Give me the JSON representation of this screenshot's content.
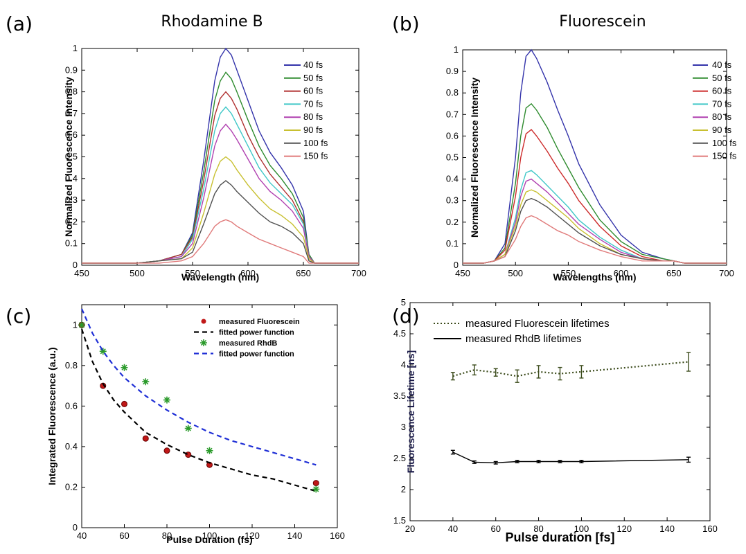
{
  "chart_data": [
    {
      "panel": "(a)",
      "type": "line",
      "title": "Rhodamine B",
      "xlabel": "Wavelength (nm)",
      "ylabel": "Normalized Fluorescence Intensity",
      "xlim": [
        450,
        700
      ],
      "ylim": [
        0,
        1
      ],
      "xticks": [
        "450",
        "500",
        "550",
        "600",
        "650",
        "700"
      ],
      "yticks": [
        "0",
        "0.1",
        "0.2",
        "0.3",
        "0.4",
        "0.5",
        "0.6",
        "0.7",
        "0.8",
        "0.9",
        "1"
      ],
      "legend_position": "top-right",
      "x": [
        450,
        480,
        500,
        520,
        540,
        550,
        560,
        570,
        575,
        580,
        585,
        590,
        600,
        610,
        620,
        630,
        640,
        650,
        655,
        660,
        680,
        700
      ],
      "series": [
        {
          "name": "40 fs",
          "color": "#3333aa",
          "values": [
            0.01,
            0.01,
            0.01,
            0.02,
            0.05,
            0.15,
            0.48,
            0.85,
            0.96,
            1.0,
            0.97,
            0.9,
            0.76,
            0.62,
            0.52,
            0.45,
            0.37,
            0.25,
            0.05,
            0.01,
            0.01,
            0.01
          ]
        },
        {
          "name": "50 fs",
          "color": "#2e8b2e",
          "values": [
            0.01,
            0.01,
            0.01,
            0.02,
            0.05,
            0.14,
            0.43,
            0.76,
            0.85,
            0.89,
            0.86,
            0.8,
            0.67,
            0.55,
            0.46,
            0.4,
            0.33,
            0.22,
            0.05,
            0.01,
            0.01,
            0.01
          ]
        },
        {
          "name": "60 fs",
          "color": "#b03030",
          "values": [
            0.01,
            0.01,
            0.01,
            0.02,
            0.05,
            0.13,
            0.39,
            0.69,
            0.77,
            0.8,
            0.77,
            0.72,
            0.6,
            0.5,
            0.42,
            0.36,
            0.3,
            0.2,
            0.04,
            0.01,
            0.01,
            0.01
          ]
        },
        {
          "name": "70 fs",
          "color": "#40c8c8",
          "values": [
            0.01,
            0.01,
            0.01,
            0.02,
            0.04,
            0.12,
            0.35,
            0.62,
            0.7,
            0.73,
            0.7,
            0.65,
            0.55,
            0.45,
            0.38,
            0.33,
            0.28,
            0.19,
            0.04,
            0.01,
            0.01,
            0.01
          ]
        },
        {
          "name": "80 fs",
          "color": "#b040b0",
          "values": [
            0.01,
            0.01,
            0.01,
            0.02,
            0.04,
            0.1,
            0.31,
            0.55,
            0.62,
            0.65,
            0.62,
            0.58,
            0.49,
            0.4,
            0.34,
            0.3,
            0.25,
            0.17,
            0.04,
            0.01,
            0.01,
            0.01
          ]
        },
        {
          "name": "90 fs",
          "color": "#c8c030",
          "values": [
            0.01,
            0.01,
            0.01,
            0.02,
            0.03,
            0.08,
            0.24,
            0.42,
            0.48,
            0.5,
            0.48,
            0.44,
            0.37,
            0.31,
            0.26,
            0.23,
            0.19,
            0.13,
            0.03,
            0.01,
            0.01,
            0.01
          ]
        },
        {
          "name": "100 fs",
          "color": "#505050",
          "values": [
            0.01,
            0.01,
            0.01,
            0.02,
            0.03,
            0.06,
            0.19,
            0.33,
            0.37,
            0.39,
            0.37,
            0.34,
            0.29,
            0.24,
            0.2,
            0.18,
            0.15,
            0.1,
            0.02,
            0.01,
            0.01,
            0.01
          ]
        },
        {
          "name": "150 fs",
          "color": "#e07a7a",
          "values": [
            0.01,
            0.01,
            0.01,
            0.01,
            0.02,
            0.04,
            0.1,
            0.18,
            0.2,
            0.21,
            0.2,
            0.18,
            0.15,
            0.12,
            0.1,
            0.08,
            0.06,
            0.04,
            0.01,
            0.01,
            0.01,
            0.01
          ]
        }
      ]
    },
    {
      "panel": "(b)",
      "type": "line",
      "title": "Fluorescein",
      "xlabel": "Wavelengths (nm)",
      "ylabel": "Normalized Fluorescence Intensity",
      "xlim": [
        450,
        700
      ],
      "ylim": [
        0,
        1
      ],
      "xticks": [
        "450",
        "500",
        "550",
        "600",
        "650",
        "700"
      ],
      "yticks": [
        "0",
        "0.1",
        "0.2",
        "0.3",
        "0.4",
        "0.5",
        "0.6",
        "0.7",
        "0.8",
        "0.9",
        "1"
      ],
      "legend_position": "top-right",
      "x": [
        450,
        470,
        480,
        490,
        500,
        505,
        510,
        515,
        520,
        530,
        540,
        550,
        560,
        580,
        600,
        620,
        640,
        650,
        660,
        680,
        700
      ],
      "series": [
        {
          "name": "40 fs",
          "color": "#3333aa",
          "values": [
            0.01,
            0.01,
            0.02,
            0.1,
            0.5,
            0.8,
            0.97,
            1.0,
            0.96,
            0.85,
            0.72,
            0.6,
            0.47,
            0.28,
            0.14,
            0.06,
            0.03,
            0.02,
            0.01,
            0.01,
            0.01
          ]
        },
        {
          "name": "50 fs",
          "color": "#2e8b2e",
          "values": [
            0.01,
            0.01,
            0.02,
            0.08,
            0.38,
            0.6,
            0.73,
            0.75,
            0.72,
            0.64,
            0.54,
            0.45,
            0.36,
            0.21,
            0.11,
            0.05,
            0.03,
            0.02,
            0.01,
            0.01,
            0.01
          ]
        },
        {
          "name": "60 fs",
          "color": "#cc2a2a",
          "values": [
            0.01,
            0.01,
            0.02,
            0.07,
            0.32,
            0.5,
            0.61,
            0.63,
            0.6,
            0.53,
            0.45,
            0.38,
            0.3,
            0.18,
            0.09,
            0.04,
            0.02,
            0.02,
            0.01,
            0.01,
            0.01
          ]
        },
        {
          "name": "70 fs",
          "color": "#40c8c8",
          "values": [
            0.01,
            0.01,
            0.02,
            0.05,
            0.22,
            0.35,
            0.43,
            0.44,
            0.42,
            0.37,
            0.32,
            0.27,
            0.21,
            0.13,
            0.07,
            0.03,
            0.02,
            0.02,
            0.01,
            0.01,
            0.01
          ]
        },
        {
          "name": "80 fs",
          "color": "#b040b0",
          "values": [
            0.01,
            0.01,
            0.02,
            0.05,
            0.2,
            0.32,
            0.39,
            0.4,
            0.38,
            0.34,
            0.29,
            0.24,
            0.19,
            0.12,
            0.06,
            0.03,
            0.02,
            0.02,
            0.01,
            0.01,
            0.01
          ]
        },
        {
          "name": "90 fs",
          "color": "#c8c030",
          "values": [
            0.01,
            0.01,
            0.02,
            0.05,
            0.18,
            0.28,
            0.34,
            0.35,
            0.34,
            0.3,
            0.26,
            0.22,
            0.17,
            0.1,
            0.05,
            0.03,
            0.02,
            0.02,
            0.01,
            0.01,
            0.01
          ]
        },
        {
          "name": "100 fs",
          "color": "#505050",
          "values": [
            0.01,
            0.01,
            0.02,
            0.04,
            0.16,
            0.25,
            0.3,
            0.31,
            0.3,
            0.27,
            0.23,
            0.19,
            0.15,
            0.09,
            0.05,
            0.03,
            0.02,
            0.02,
            0.01,
            0.01,
            0.01
          ]
        },
        {
          "name": "150 fs",
          "color": "#e07a7a",
          "values": [
            0.01,
            0.01,
            0.02,
            0.04,
            0.12,
            0.18,
            0.22,
            0.23,
            0.22,
            0.19,
            0.16,
            0.14,
            0.11,
            0.07,
            0.04,
            0.02,
            0.02,
            0.02,
            0.01,
            0.01,
            0.01
          ]
        }
      ]
    },
    {
      "panel": "(c)",
      "type": "scatter",
      "xlabel": "Pulse Duration (fs)",
      "ylabel": "Integrated Fluorescence (a.u.)",
      "xlim": [
        40,
        160
      ],
      "ylim": [
        0,
        1.1
      ],
      "xticks": [
        "40",
        "60",
        "80",
        "100",
        "120",
        "140",
        "160"
      ],
      "yticks": [
        "0",
        "0.2",
        "0.4",
        "0.6",
        "0.8",
        "1"
      ],
      "legend_position": "top-right",
      "series": [
        {
          "name": "measured Fluorescein",
          "kind": "points",
          "marker": "dot",
          "color": "#c01818",
          "x": [
            40,
            50,
            60,
            70,
            80,
            90,
            100,
            150
          ],
          "y": [
            1.0,
            0.7,
            0.61,
            0.44,
            0.38,
            0.36,
            0.31,
            0.22
          ]
        },
        {
          "name": "fitted power function",
          "kind": "line",
          "style": "dashed",
          "color": "#000000",
          "x": [
            40,
            45,
            50,
            55,
            60,
            70,
            80,
            90,
            100,
            110,
            120,
            130,
            140,
            150
          ],
          "y": [
            0.98,
            0.82,
            0.71,
            0.63,
            0.57,
            0.47,
            0.41,
            0.36,
            0.32,
            0.29,
            0.26,
            0.24,
            0.21,
            0.18
          ]
        },
        {
          "name": "measured RhdB",
          "kind": "points",
          "marker": "star",
          "color": "#2a9a2a",
          "x": [
            40,
            50,
            60,
            70,
            80,
            90,
            100,
            150
          ],
          "y": [
            1.0,
            0.87,
            0.79,
            0.72,
            0.63,
            0.49,
            0.38,
            0.19
          ]
        },
        {
          "name": "fitted power function",
          "kind": "line",
          "style": "dashed",
          "color": "#1f2fd6",
          "x": [
            40,
            45,
            50,
            55,
            60,
            70,
            80,
            90,
            100,
            110,
            120,
            130,
            140,
            150
          ],
          "y": [
            1.08,
            0.96,
            0.87,
            0.8,
            0.74,
            0.65,
            0.58,
            0.52,
            0.47,
            0.43,
            0.4,
            0.37,
            0.34,
            0.31
          ]
        }
      ]
    },
    {
      "panel": "(d)",
      "type": "line",
      "xlabel": "Pulse duration [fs]",
      "ylabel": "Fluorescence Lifetime [ns]",
      "xlim": [
        20,
        160
      ],
      "ylim": [
        1.5,
        5
      ],
      "xticks": [
        "20",
        "40",
        "60",
        "80",
        "100",
        "120",
        "140",
        "160"
      ],
      "yticks": [
        "1.5",
        "2",
        "2.5",
        "3",
        "3.5",
        "4",
        "4.5",
        "5"
      ],
      "legend_position": "top-left",
      "series": [
        {
          "name": "measured Fluorescein lifetimes",
          "style": "dotted",
          "color": "#3a4a1a",
          "x": [
            40,
            50,
            60,
            70,
            80,
            90,
            100,
            150
          ],
          "y": [
            3.82,
            3.92,
            3.88,
            3.82,
            3.89,
            3.86,
            3.89,
            4.05
          ],
          "err": [
            0.06,
            0.08,
            0.06,
            0.1,
            0.1,
            0.1,
            0.1,
            0.15
          ]
        },
        {
          "name": "measured RhdB lifetimes",
          "style": "solid",
          "color": "#000000",
          "x": [
            40,
            50,
            60,
            70,
            80,
            90,
            100,
            150
          ],
          "y": [
            2.6,
            2.44,
            2.43,
            2.45,
            2.45,
            2.45,
            2.45,
            2.48
          ],
          "err": [
            0.03,
            0.02,
            0.02,
            0.02,
            0.02,
            0.02,
            0.02,
            0.04
          ]
        }
      ]
    }
  ]
}
